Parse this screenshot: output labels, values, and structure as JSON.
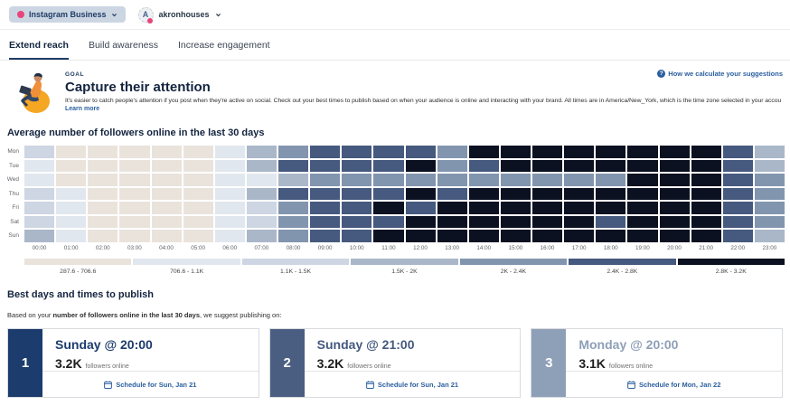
{
  "header": {
    "account_type": "Instagram Business",
    "profile_name": "akronhouses"
  },
  "tabs": [
    {
      "label": "Extend reach",
      "active": true
    },
    {
      "label": "Build awareness",
      "active": false
    },
    {
      "label": "Increase engagement",
      "active": false
    }
  ],
  "goal": {
    "label": "GOAL",
    "title": "Capture their attention",
    "description": "It's easier to catch people's attention if you post when they're active on social. Check out your best times to publish based on when your audience is online and interacting with your brand. All times are in America/New_York, which is the time zone selected in your account settings.",
    "learn_more": "Learn more",
    "help_link": "How we calculate your suggestions"
  },
  "chart_data": {
    "type": "heatmap",
    "title": "Average number of followers online in the last 30 days",
    "days": [
      "Mon",
      "Tue",
      "Wed",
      "Thu",
      "Fri",
      "Sat",
      "Sun"
    ],
    "hours": [
      "00:00",
      "01:00",
      "02:00",
      "03:00",
      "04:00",
      "05:00",
      "06:00",
      "07:00",
      "08:00",
      "09:00",
      "10:00",
      "11:00",
      "12:00",
      "13:00",
      "14:00",
      "15:00",
      "16:00",
      "17:00",
      "18:00",
      "19:00",
      "20:00",
      "21:00",
      "22:00",
      "23:00"
    ],
    "buckets": [
      {
        "label": "287.6 - 706.6",
        "color": "#e9e3dc"
      },
      {
        "label": "706.6 - 1.1K",
        "color": "#e1e7ee"
      },
      {
        "label": "1.1K - 1.5K",
        "color": "#cdd6e2"
      },
      {
        "label": "1.5K - 2K",
        "color": "#aab7c9"
      },
      {
        "label": "2K - 2.4K",
        "color": "#8295af"
      },
      {
        "label": "2.4K - 2.8K",
        "color": "#46597e"
      },
      {
        "label": "2.8K - 3.2K",
        "color": "#0b1120"
      }
    ],
    "matrix": [
      [
        3,
        1,
        1,
        1,
        1,
        1,
        2,
        4,
        5,
        6,
        6,
        6,
        6,
        5,
        7,
        7,
        7,
        7,
        7,
        7,
        7,
        7,
        6,
        4
      ],
      [
        2,
        1,
        1,
        1,
        1,
        1,
        2,
        4,
        6,
        6,
        6,
        6,
        7,
        5,
        6,
        7,
        7,
        7,
        7,
        7,
        7,
        7,
        6,
        4
      ],
      [
        2,
        1,
        1,
        1,
        1,
        1,
        2,
        2,
        4,
        5,
        5,
        5,
        5,
        5,
        5,
        5,
        5,
        5,
        5,
        7,
        7,
        7,
        6,
        5
      ],
      [
        3,
        2,
        1,
        1,
        1,
        1,
        2,
        4,
        6,
        6,
        6,
        6,
        7,
        6,
        7,
        7,
        7,
        7,
        7,
        7,
        7,
        7,
        6,
        5
      ],
      [
        3,
        2,
        1,
        1,
        1,
        1,
        2,
        3,
        5,
        6,
        6,
        7,
        6,
        7,
        7,
        7,
        7,
        7,
        7,
        7,
        7,
        7,
        6,
        5
      ],
      [
        3,
        2,
        1,
        1,
        1,
        1,
        2,
        3,
        5,
        6,
        6,
        6,
        7,
        7,
        7,
        7,
        7,
        7,
        6,
        7,
        7,
        7,
        6,
        5
      ],
      [
        4,
        2,
        1,
        1,
        1,
        1,
        2,
        4,
        5,
        6,
        6,
        7,
        7,
        7,
        7,
        7,
        7,
        7,
        7,
        7,
        7,
        7,
        6,
        4
      ]
    ],
    "legend_position": "bottom"
  },
  "best_times": {
    "title": "Best days and times to publish",
    "intro_prefix": "Based on your ",
    "intro_bold": "number of followers online in the last 30 days",
    "intro_suffix": ", we suggest publishing on:",
    "cards": [
      {
        "rank": "1",
        "title": "Sunday @ 20:00",
        "value": "3.2K",
        "value_suffix": "followers online",
        "schedule_label": "Schedule for Sun, Jan 21",
        "rank_color": "#1c3c6d",
        "title_color": "#1c3c6d"
      },
      {
        "rank": "2",
        "title": "Sunday @ 21:00",
        "value": "3.2K",
        "value_suffix": "followers online",
        "schedule_label": "Schedule for Sun, Jan 21",
        "rank_color": "#4a5e82",
        "title_color": "#44597f"
      },
      {
        "rank": "3",
        "title": "Monday @ 20:00",
        "value": "3.1K",
        "value_suffix": "followers online",
        "schedule_label": "Schedule for Mon, Jan 22",
        "rank_color": "#8ea0b8",
        "title_color": "#8ea0b8"
      }
    ]
  }
}
